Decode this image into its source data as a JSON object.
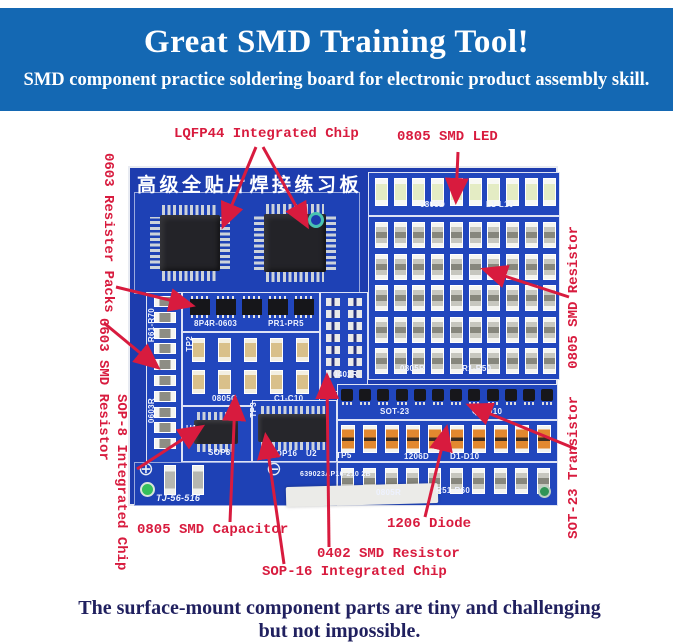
{
  "header": {
    "title": "Great SMD Training Tool!",
    "subtitle": "SMD component practice soldering board for electronic product assembly skill."
  },
  "footer": {
    "line1": "The surface-mount component parts are tiny and challenging",
    "line2": "but not impossible."
  },
  "annotations": {
    "lqfp44": "LQFP44 Integrated Chip",
    "led": "0805 SMD LED",
    "resister_packs": "0603 Resister Packs",
    "r0603": "0603 SMD Resistor",
    "sop8": "SOP-8 Integrated Chip",
    "r0805": "0805 SMD Resistor",
    "sot23": "SOT-23 Transistor",
    "cap": "0805 SMD Capacitor",
    "sop16": "SOP-16 Integrated Chip",
    "r0402": "0402 SMD Resistor",
    "diode": "1206 Diode"
  },
  "board": {
    "title_cn": "高级全贴片焊接练习板",
    "silkscreen": {
      "led_type": "0805D",
      "led_range": "L1-L10",
      "r50_type": "0805R",
      "r50_range": "R1-R50",
      "sot_type": "SOT-23",
      "sot_range": "Q1-Q10",
      "tp5": "TP5",
      "diode_type": "1206D",
      "diode_range": "D1-D10",
      "r60_type": "0805R",
      "r60_range": "R51-R60",
      "left_range": "R61-R70",
      "left_type": "0603R",
      "pack_type": "8P4R-0603",
      "pack_range": "PR1-PR5",
      "cap_type": "0805C",
      "cap_range": "C1-C10",
      "r0402_type": "0402R",
      "sop8_ref": "U1",
      "sop8_label": "SOP8",
      "sop16_label": "SOP16",
      "sop16_ref": "U2",
      "tp2": "TP2",
      "tp3": "TP3",
      "board_id": "639023AP16-210 2B",
      "model": "TJ-56-516"
    }
  },
  "colors": {
    "banner_blue": "#1468b3",
    "annotation_red": "#d81b3e",
    "pcb_blue": "#1d3cae",
    "pcb_panel_blue": "#2146bd",
    "footer_navy": "#20205f",
    "silkscreen_white": "#eef2ff"
  }
}
